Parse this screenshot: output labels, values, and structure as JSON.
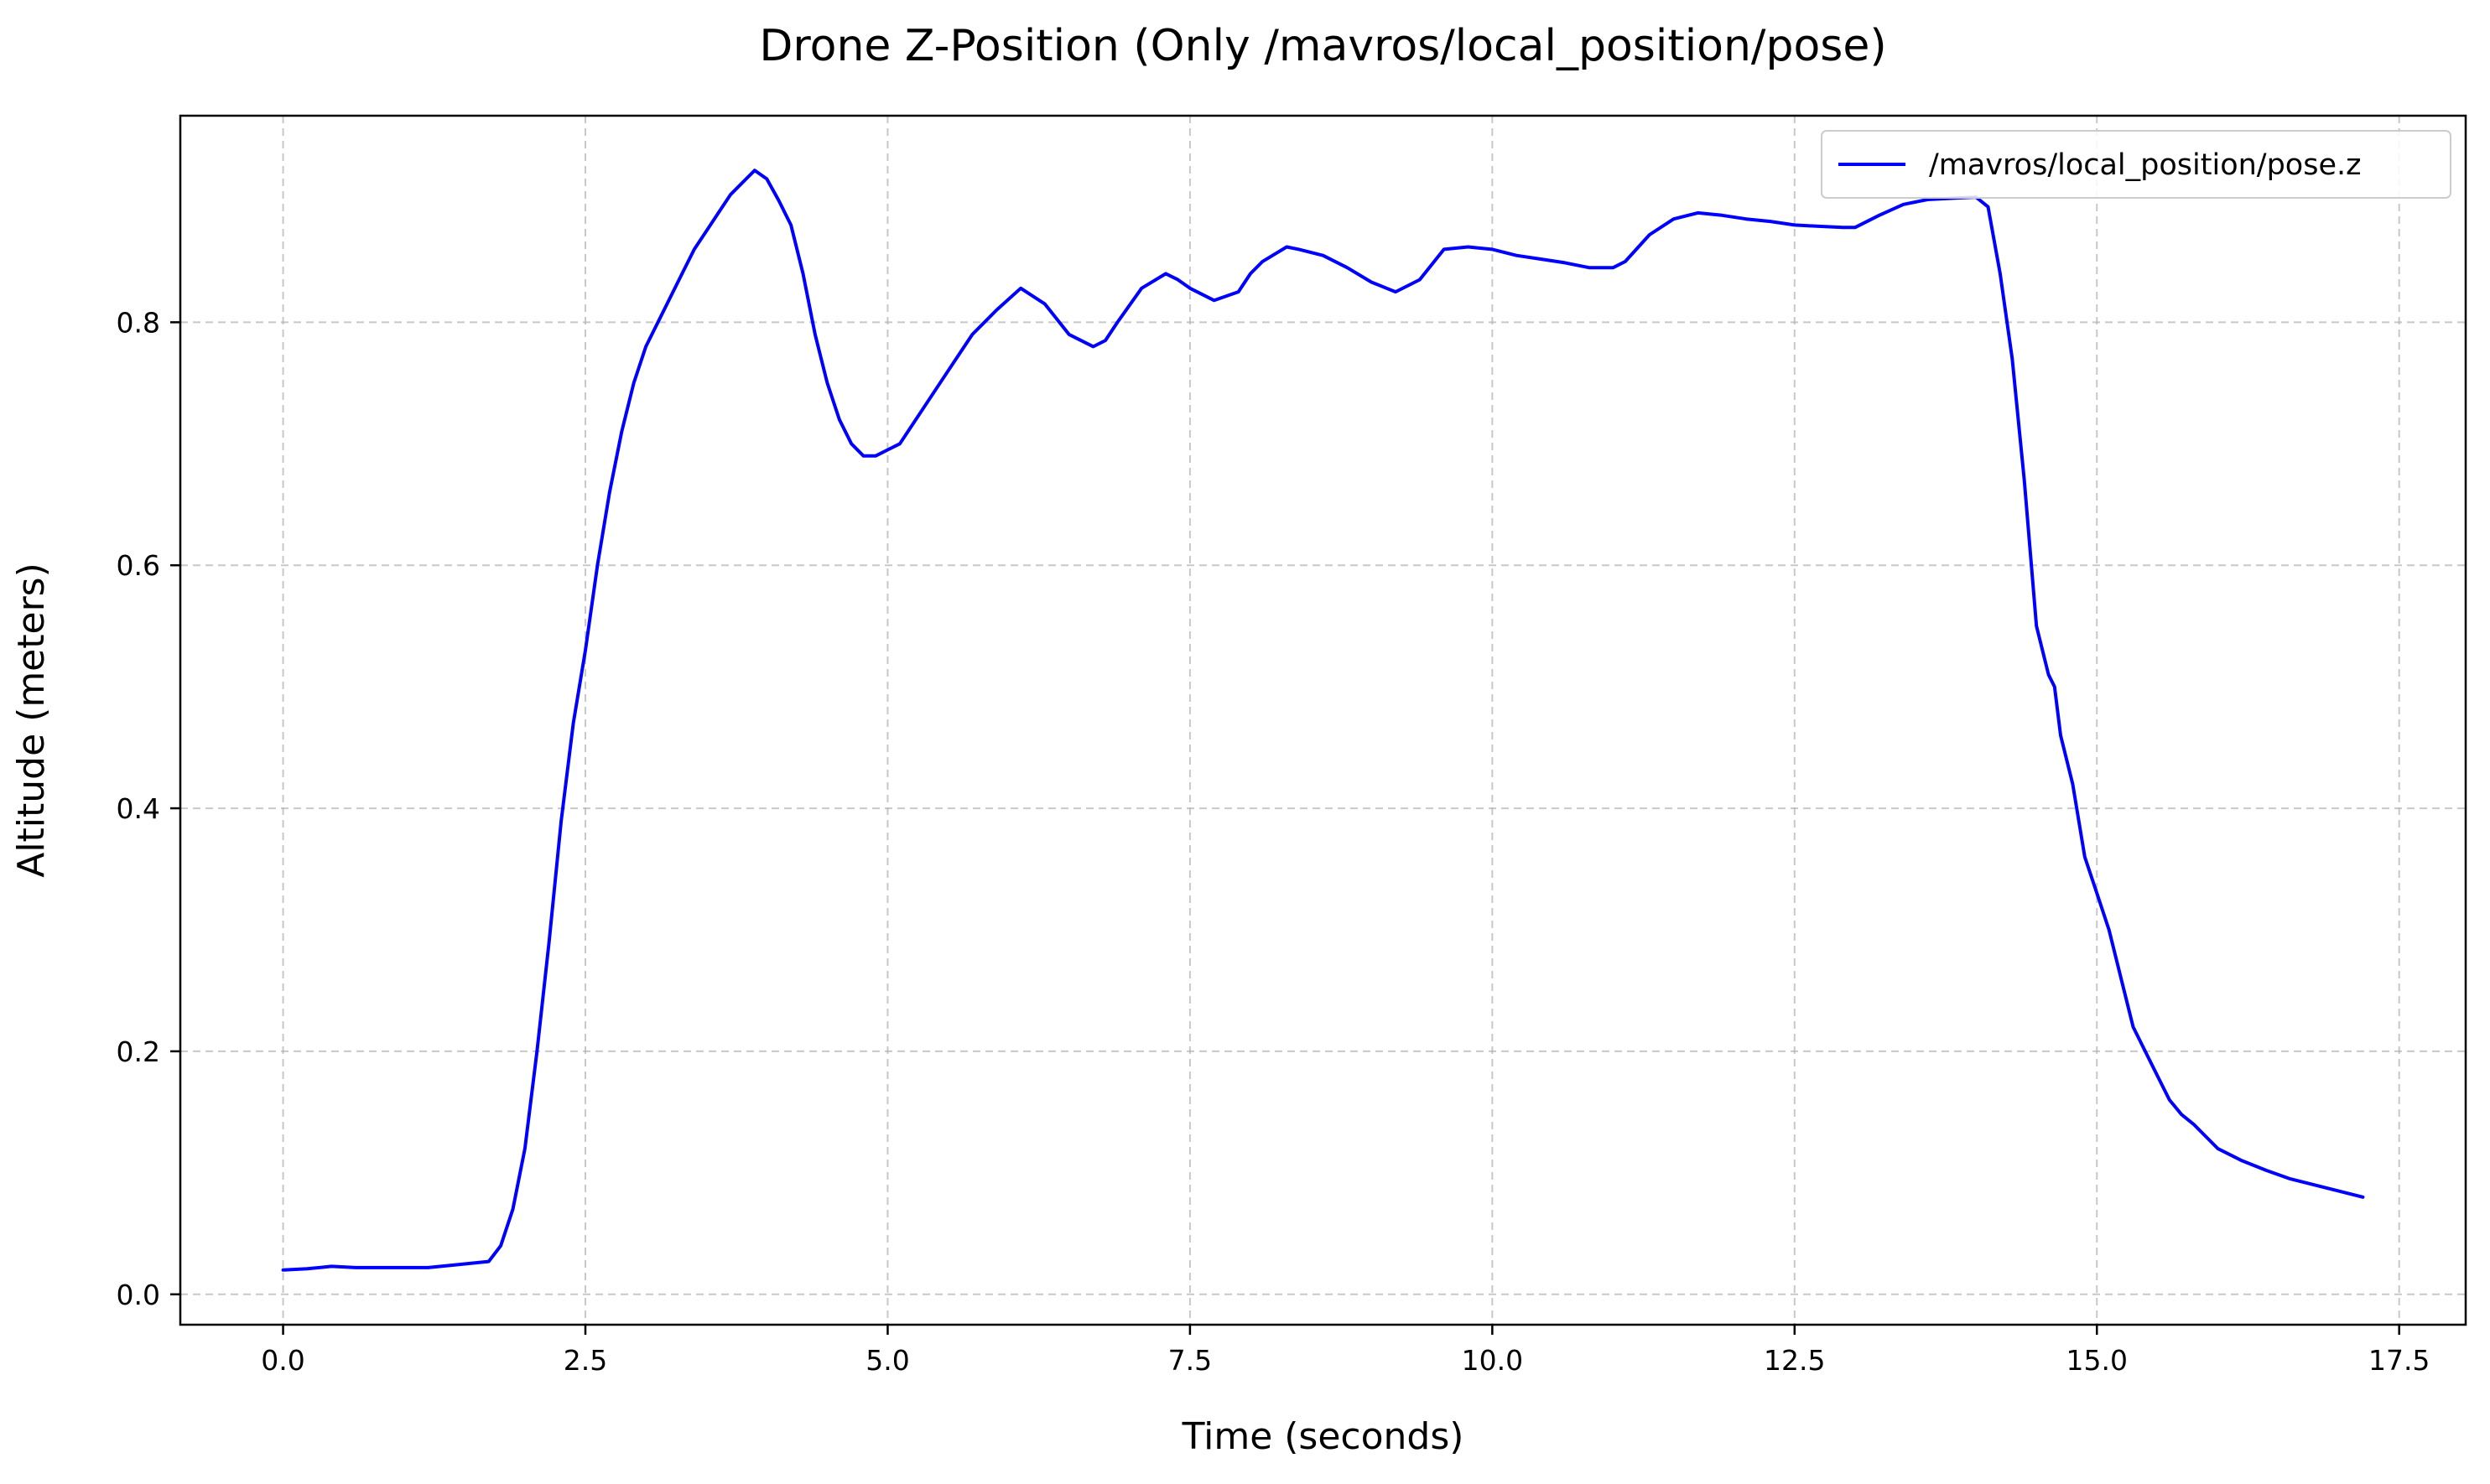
{
  "chart_data": {
    "type": "line",
    "title": "Drone Z-Position (Only /mavros/local_position/pose)",
    "xlabel": "Time (seconds)",
    "ylabel": "Altitude (meters)",
    "xlim": [
      -0.85,
      18.05
    ],
    "ylim": [
      -0.025,
      0.97
    ],
    "grid": true,
    "legend_position": "upper-right",
    "x_ticks": [
      0.0,
      2.5,
      5.0,
      7.5,
      10.0,
      12.5,
      15.0,
      17.5
    ],
    "x_tick_labels": [
      "0.0",
      "2.5",
      "5.0",
      "7.5",
      "10.0",
      "12.5",
      "15.0",
      "17.5"
    ],
    "y_ticks": [
      0.0,
      0.2,
      0.4,
      0.6,
      0.8
    ],
    "y_tick_labels": [
      "0.0",
      "0.2",
      "0.4",
      "0.6",
      "0.8"
    ],
    "series": [
      {
        "name": "/mavros/local_position/pose.z",
        "color": "#0000ff",
        "x": [
          0.0,
          0.2,
          0.4,
          0.6,
          0.8,
          1.0,
          1.2,
          1.4,
          1.7,
          1.8,
          1.9,
          2.0,
          2.1,
          2.2,
          2.3,
          2.4,
          2.5,
          2.6,
          2.7,
          2.8,
          2.9,
          3.0,
          3.1,
          3.2,
          3.3,
          3.4,
          3.5,
          3.6,
          3.7,
          3.8,
          3.9,
          4.0,
          4.1,
          4.2,
          4.3,
          4.4,
          4.5,
          4.6,
          4.7,
          4.8,
          4.9,
          5.0,
          5.1,
          5.3,
          5.5,
          5.7,
          5.9,
          6.1,
          6.3,
          6.5,
          6.7,
          6.8,
          6.9,
          7.1,
          7.3,
          7.4,
          7.5,
          7.7,
          7.9,
          8.0,
          8.1,
          8.3,
          8.4,
          8.6,
          8.8,
          9.0,
          9.2,
          9.4,
          9.6,
          9.8,
          10.0,
          10.2,
          10.4,
          10.6,
          10.8,
          11.0,
          11.1,
          11.3,
          11.5,
          11.7,
          11.9,
          12.1,
          12.3,
          12.5,
          12.7,
          12.9,
          13.0,
          13.2,
          13.4,
          13.6,
          13.8,
          14.0,
          14.1,
          14.2,
          14.3,
          14.4,
          14.5,
          14.6,
          14.65,
          14.7,
          14.8,
          14.9,
          15.0,
          15.1,
          15.2,
          15.3,
          15.4,
          15.5,
          15.6,
          15.7,
          15.8,
          15.9,
          16.0,
          16.2,
          16.4,
          16.6,
          16.8,
          17.0,
          17.2
        ],
        "values": [
          0.02,
          0.021,
          0.023,
          0.022,
          0.022,
          0.022,
          0.022,
          0.024,
          0.027,
          0.04,
          0.07,
          0.12,
          0.2,
          0.29,
          0.39,
          0.47,
          0.53,
          0.6,
          0.66,
          0.71,
          0.75,
          0.78,
          0.8,
          0.82,
          0.84,
          0.86,
          0.875,
          0.89,
          0.905,
          0.915,
          0.925,
          0.918,
          0.9,
          0.88,
          0.84,
          0.79,
          0.75,
          0.72,
          0.7,
          0.69,
          0.69,
          0.695,
          0.7,
          0.73,
          0.76,
          0.79,
          0.81,
          0.828,
          0.815,
          0.79,
          0.78,
          0.785,
          0.8,
          0.828,
          0.84,
          0.835,
          0.828,
          0.818,
          0.825,
          0.84,
          0.85,
          0.862,
          0.86,
          0.855,
          0.845,
          0.833,
          0.825,
          0.835,
          0.86,
          0.862,
          0.86,
          0.855,
          0.852,
          0.849,
          0.845,
          0.845,
          0.85,
          0.872,
          0.885,
          0.89,
          0.888,
          0.885,
          0.883,
          0.88,
          0.879,
          0.878,
          0.878,
          0.888,
          0.897,
          0.901,
          0.902,
          0.903,
          0.895,
          0.84,
          0.77,
          0.67,
          0.55,
          0.51,
          0.5,
          0.46,
          0.42,
          0.36,
          0.33,
          0.3,
          0.26,
          0.22,
          0.2,
          0.18,
          0.16,
          0.148,
          0.14,
          0.13,
          0.12,
          0.11,
          0.102,
          0.095,
          0.09,
          0.085,
          0.08
        ]
      }
    ]
  }
}
